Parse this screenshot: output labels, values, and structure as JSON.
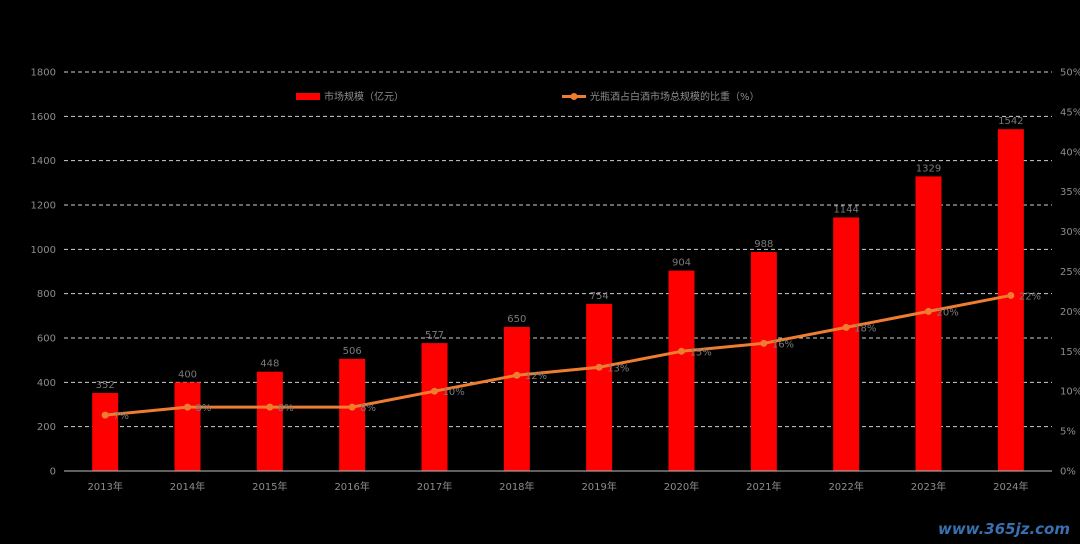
{
  "chart_data": {
    "type": "bar+line",
    "categories": [
      "2013年",
      "2014年",
      "2015年",
      "2016年",
      "2017年",
      "2018年",
      "2019年",
      "2020年",
      "2021年",
      "2022年",
      "2023年",
      "2024年"
    ],
    "series": [
      {
        "name": "市场规模（亿元）",
        "type": "bar",
        "axis": "left",
        "color": "#ff0000",
        "values": [
          352,
          400,
          448,
          506,
          577,
          650,
          754,
          904,
          988,
          1144,
          1329,
          1542
        ]
      },
      {
        "name": "光瓶酒占白酒市场总规模的比重（%）",
        "type": "line",
        "axis": "right",
        "color": "#ed7d31",
        "values": [
          7,
          8,
          8,
          8,
          10,
          12,
          13,
          15,
          16,
          18,
          20,
          22
        ],
        "labels": [
          "7%",
          "8%",
          "8%",
          "8%",
          "10%",
          "12%",
          "13%",
          "15%",
          "16%",
          "18%",
          "20%",
          "22%"
        ]
      }
    ],
    "yleft": {
      "min": 0,
      "max": 1800,
      "step": 200,
      "ticks": [
        "0",
        "200",
        "400",
        "600",
        "800",
        "1000",
        "1200",
        "1400",
        "1600",
        "1800"
      ]
    },
    "yright": {
      "min": 0,
      "max": 50,
      "step": 5,
      "ticks": [
        "0%",
        "5%",
        "10%",
        "15%",
        "20%",
        "25%",
        "30%",
        "35%",
        "40%",
        "45%",
        "50%"
      ]
    },
    "grid": true,
    "legend": "top-center"
  },
  "watermark": "www.365jz.com"
}
